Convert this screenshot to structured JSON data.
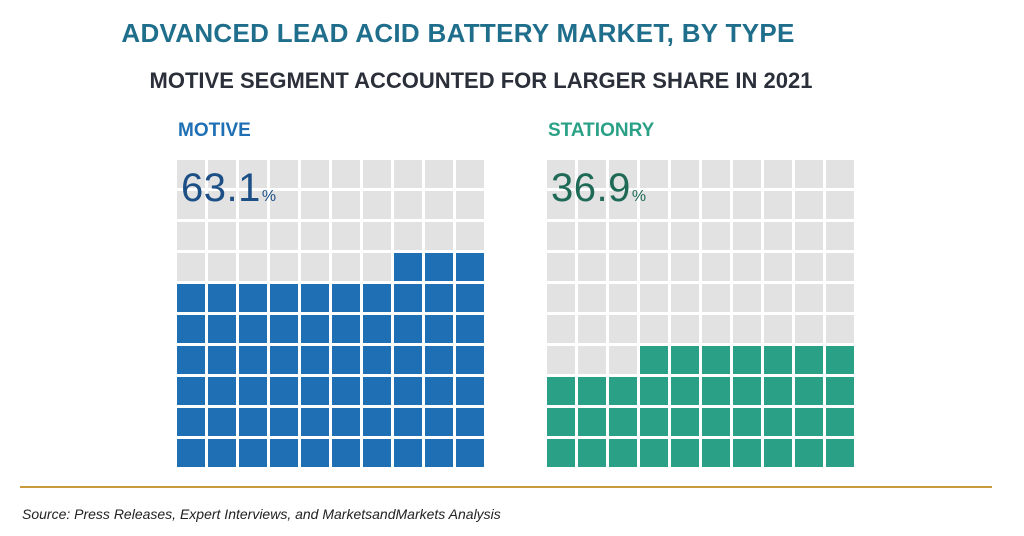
{
  "title": "ADVANCED LEAD ACID BATTERY MARKET, BY TYPE",
  "subtitle": "MOTIVE SEGMENT ACCOUNTED FOR LARGER SHARE IN 2021",
  "source": "Source: Press Releases, Expert Interviews, and MarketsandMarkets Analysis",
  "colors": {
    "title": "#1f6e8c",
    "empty_cell": "#e2e2e2",
    "rule": "#c99a3c"
  },
  "chart_data": {
    "type": "waffle",
    "grid": {
      "rows": 10,
      "cols": 10
    },
    "title": "ADVANCED LEAD ACID BATTERY MARKET, BY TYPE",
    "subtitle": "MOTIVE SEGMENT ACCOUNTED FOR LARGER SHARE IN 2021",
    "series": [
      {
        "name": "MOTIVE",
        "value": 63.1,
        "value_text": "63.1",
        "unit": "%",
        "filled_cells": 63,
        "color": "#1f6fb5"
      },
      {
        "name": "STATIONRY",
        "value": 36.9,
        "value_text": "36.9",
        "unit": "%",
        "filled_cells": 37,
        "color": "#2aa186"
      }
    ]
  }
}
